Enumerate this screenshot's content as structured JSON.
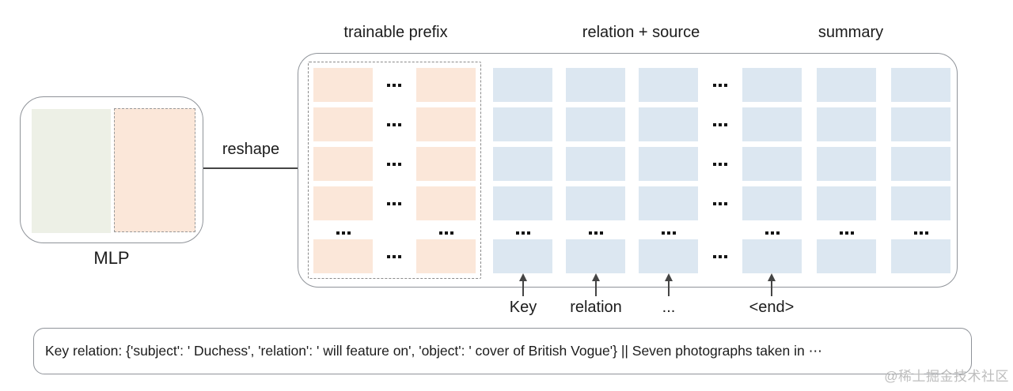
{
  "header": {
    "trainable_prefix": "trainable prefix",
    "relation_source": "relation + source",
    "summary": "summary"
  },
  "mlp": {
    "label": "MLP"
  },
  "reshape": {
    "label": "reshape"
  },
  "token_labels": {
    "key": "Key",
    "relation": "relation",
    "dots": "...",
    "end": "<end>"
  },
  "grid": {
    "rows_shown": 5,
    "prefix_columns_shown": 2,
    "relation_source_columns_shown": 3,
    "summary_columns_shown": 3,
    "ellipsis_mark": "..."
  },
  "bottom_box": {
    "text": "Key relation: {'subject': ' Duchess', 'relation': ' will feature on', 'object': ' cover of British Vogue'} || Seven photographs taken in ⋯"
  },
  "watermark": {
    "text": "@稀土掘金技术社区"
  },
  "colors": {
    "prefix_cell": "#fbe7d9",
    "token_cell": "#dce7f1",
    "mlp_left_block": "#edf0e6",
    "box_border": "#8f9399",
    "watermark": "#bdbdbd"
  }
}
